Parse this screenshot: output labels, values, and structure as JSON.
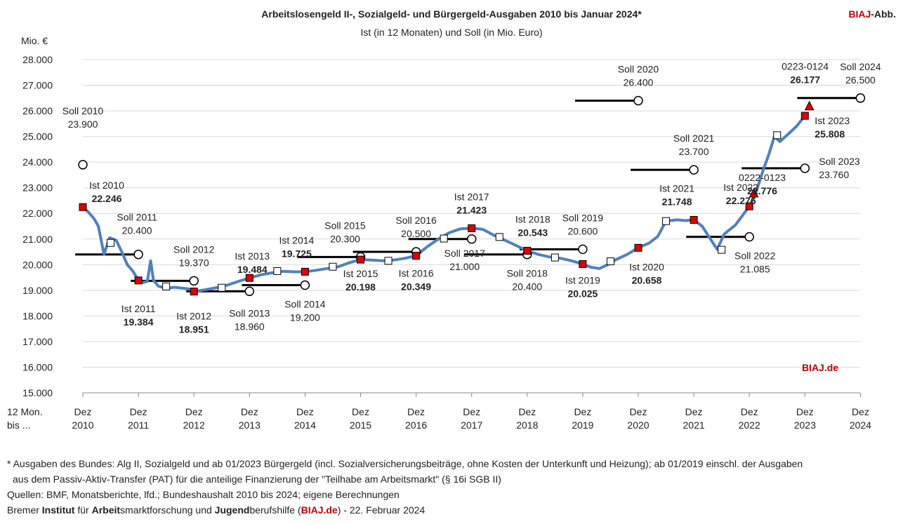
{
  "header": {
    "title": "Arbeitslosengeld II-, Sozialgeld- und Bürgergeld-Ausgaben 2010 bis Januar 2024*",
    "subtitle": "Ist (in 12 Monaten) und Soll (in Mio. Euro)",
    "badge_red": "BIAJ",
    "badge_rest": "-Abb."
  },
  "chart_data": {
    "type": "line",
    "ylabel": "Mio. €",
    "ylim": [
      15000,
      28000
    ],
    "yticks": [
      "15.000",
      "16.000",
      "17.000",
      "18.000",
      "19.000",
      "20.000",
      "21.000",
      "22.000",
      "23.000",
      "24.000",
      "25.000",
      "26.000",
      "27.000",
      "28.000"
    ],
    "x_prefix": [
      "12 Mon.",
      "bis ..."
    ],
    "x_ticks": [
      {
        "line1": "Dez",
        "line2": "2010"
      },
      {
        "line1": "Dez",
        "line2": "2011"
      },
      {
        "line1": "Dez",
        "line2": "2012"
      },
      {
        "line1": "Dez",
        "line2": "2013"
      },
      {
        "line1": "Dez",
        "line2": "2014"
      },
      {
        "line1": "Dez",
        "line2": "2015"
      },
      {
        "line1": "Dez",
        "line2": "2016"
      },
      {
        "line1": "Dez",
        "line2": "2017"
      },
      {
        "line1": "Dez",
        "line2": "2018"
      },
      {
        "line1": "Dez",
        "line2": "2019"
      },
      {
        "line1": "Dez",
        "line2": "2020"
      },
      {
        "line1": "Dez",
        "line2": "2021"
      },
      {
        "line1": "Dez",
        "line2": "2022"
      },
      {
        "line1": "Dez",
        "line2": "2023"
      },
      {
        "line1": "Dez",
        "line2": "2024"
      }
    ],
    "watermark": "BIAJ.de",
    "curve": [
      [
        2010.0,
        22246
      ],
      [
        2010.1,
        22050
      ],
      [
        2010.2,
        21800
      ],
      [
        2010.28,
        21500
      ],
      [
        2010.38,
        20400
      ],
      [
        2010.48,
        21050
      ],
      [
        2010.6,
        20950
      ],
      [
        2010.7,
        20500
      ],
      [
        2010.8,
        20000
      ],
      [
        2010.9,
        19750
      ],
      [
        2011.0,
        19384
      ],
      [
        2011.08,
        19300
      ],
      [
        2011.16,
        19350
      ],
      [
        2011.22,
        20150
      ],
      [
        2011.27,
        19400
      ],
      [
        2011.36,
        19160
      ],
      [
        2011.5,
        19080
      ],
      [
        2011.65,
        19120
      ],
      [
        2011.8,
        19080
      ],
      [
        2011.9,
        19060
      ],
      [
        2012.0,
        18951
      ],
      [
        2012.2,
        19020
      ],
      [
        2012.4,
        19100
      ],
      [
        2012.6,
        19200
      ],
      [
        2012.8,
        19350
      ],
      [
        2013.0,
        19484
      ],
      [
        2013.2,
        19600
      ],
      [
        2013.4,
        19680
      ],
      [
        2013.6,
        19740
      ],
      [
        2013.8,
        19720
      ],
      [
        2014.0,
        19725
      ],
      [
        2014.2,
        19780
      ],
      [
        2014.4,
        19850
      ],
      [
        2014.6,
        19920
      ],
      [
        2014.8,
        20080
      ],
      [
        2015.0,
        20198
      ],
      [
        2015.2,
        20180
      ],
      [
        2015.4,
        20150
      ],
      [
        2015.6,
        20180
      ],
      [
        2015.8,
        20250
      ],
      [
        2016.0,
        20349
      ],
      [
        2016.2,
        20700
      ],
      [
        2016.4,
        21000
      ],
      [
        2016.6,
        21250
      ],
      [
        2016.8,
        21400
      ],
      [
        2017.0,
        21423
      ],
      [
        2017.2,
        21380
      ],
      [
        2017.4,
        21150
      ],
      [
        2017.6,
        20950
      ],
      [
        2017.8,
        20750
      ],
      [
        2018.0,
        20543
      ],
      [
        2018.2,
        20400
      ],
      [
        2018.4,
        20300
      ],
      [
        2018.6,
        20250
      ],
      [
        2018.8,
        20150
      ],
      [
        2019.0,
        20025
      ],
      [
        2019.15,
        19900
      ],
      [
        2019.3,
        19850
      ],
      [
        2019.45,
        20000
      ],
      [
        2019.6,
        20200
      ],
      [
        2019.8,
        20400
      ],
      [
        2020.0,
        20658
      ],
      [
        2020.2,
        20850
      ],
      [
        2020.35,
        21100
      ],
      [
        2020.5,
        21700
      ],
      [
        2020.7,
        21750
      ],
      [
        2020.85,
        21720
      ],
      [
        2021.0,
        21748
      ],
      [
        2021.15,
        21500
      ],
      [
        2021.3,
        21000
      ],
      [
        2021.42,
        20600
      ],
      [
        2021.55,
        21200
      ],
      [
        2021.75,
        21550
      ],
      [
        2022.0,
        22276
      ],
      [
        2022.1,
        22700
      ],
      [
        2022.25,
        23700
      ],
      [
        2022.35,
        24300
      ],
      [
        2022.45,
        25000
      ],
      [
        2022.55,
        24800
      ],
      [
        2022.7,
        25100
      ],
      [
        2022.85,
        25400
      ],
      [
        2023.0,
        25808
      ]
    ],
    "quarter_markers": [
      [
        2010.5,
        20850
      ],
      [
        2011.5,
        19150
      ],
      [
        2012.5,
        19100
      ],
      [
        2013.5,
        19750
      ],
      [
        2014.5,
        19920
      ],
      [
        2015.5,
        20150
      ],
      [
        2016.5,
        21020
      ],
      [
        2017.5,
        21080
      ],
      [
        2018.5,
        20280
      ],
      [
        2019.5,
        20130
      ],
      [
        2020.5,
        21700
      ],
      [
        2021.5,
        20580
      ],
      [
        2022.5,
        25050
      ]
    ],
    "ist_points": [
      {
        "x": 2010,
        "y": 22246,
        "label": "Ist 2010",
        "value": "22.246"
      },
      {
        "x": 2011,
        "y": 19384,
        "label": "Ist 2011",
        "value": "19.384"
      },
      {
        "x": 2012,
        "y": 18951,
        "label": "Ist 2012",
        "value": "18.951"
      },
      {
        "x": 2013,
        "y": 19484,
        "label": "Ist 2013",
        "value": "19.484"
      },
      {
        "x": 2014,
        "y": 19725,
        "label": "Ist 2014",
        "value": "19.725"
      },
      {
        "x": 2015,
        "y": 20198,
        "label": "Ist 2015",
        "value": "20.198"
      },
      {
        "x": 2016,
        "y": 20349,
        "label": "Ist 2016",
        "value": "20.349"
      },
      {
        "x": 2017,
        "y": 21423,
        "label": "Ist 2017",
        "value": "21.423"
      },
      {
        "x": 2018,
        "y": 20543,
        "label": "Ist 2018",
        "value": "20.543"
      },
      {
        "x": 2019,
        "y": 20025,
        "label": "Ist 2019",
        "value": "20.025"
      },
      {
        "x": 2020,
        "y": 20658,
        "label": "Ist 2020",
        "value": "20.658"
      },
      {
        "x": 2021,
        "y": 21748,
        "label": "Ist 2021",
        "value": "21.748"
      },
      {
        "x": 2022,
        "y": 22276,
        "label": "Ist 2022",
        "value": "22.276"
      },
      {
        "x": 2023,
        "y": 25808,
        "label": "Ist 2023",
        "value": "25.808"
      }
    ],
    "period_points": [
      {
        "x": 2022.08,
        "y": 22776,
        "label": "0222-0123",
        "value": "22.776"
      },
      {
        "x": 2023.08,
        "y": 26177,
        "label": "0223-0124",
        "value": "26.177"
      }
    ],
    "soll_points": [
      {
        "x": 2010,
        "y": 23900,
        "label": "Soll 2010",
        "value": "23.900"
      },
      {
        "x": 2011,
        "y": 20400,
        "label": "Soll 2011",
        "value": "20.400"
      },
      {
        "x": 2012,
        "y": 19370,
        "label": "Soll 2012",
        "value": "19.370"
      },
      {
        "x": 2013,
        "y": 18960,
        "label": "Soll 2013",
        "value": "18.960"
      },
      {
        "x": 2014,
        "y": 19200,
        "label": "Soll 2014",
        "value": "19.200"
      },
      {
        "x": 2015,
        "y": 20300,
        "label": "Soll 2015",
        "value": "20.300"
      },
      {
        "x": 2016,
        "y": 20500,
        "label": "Soll 2016",
        "value": "20.500"
      },
      {
        "x": 2017,
        "y": 21000,
        "label": "Soll 2017",
        "value": "21.000"
      },
      {
        "x": 2018,
        "y": 20400,
        "label": "Soll 2018",
        "value": "20.400"
      },
      {
        "x": 2019,
        "y": 20600,
        "label": "Soll 2019",
        "value": "20.600"
      },
      {
        "x": 2020,
        "y": 26400,
        "label": "Soll 2020",
        "value": "26.400"
      },
      {
        "x": 2021,
        "y": 23700,
        "label": "Soll 2021",
        "value": "23.700"
      },
      {
        "x": 2022,
        "y": 21085,
        "label": "Soll 2022",
        "value": "21.085"
      },
      {
        "x": 2023,
        "y": 23760,
        "label": "Soll 2023",
        "value": "23.760"
      },
      {
        "x": 2024,
        "y": 26500,
        "label": "Soll 2024",
        "value": "26.500"
      }
    ],
    "colors": {
      "line": "#4f81bd",
      "ist": "#e00000",
      "soll_line": "#000000",
      "grid": "#d9d9d9"
    }
  },
  "footer": {
    "note_line1": "* Ausgaben des Bundes: Alg II, Sozialgeld und ab 01/2023 Bürgergeld (incl. Sozialversicherungsbeiträge, ohne Kosten der Unterkunft und Heizung); ab 01/2019 einschl. der Ausgaben",
    "note_line2": "aus dem Passiv-Aktiv-Transfer (PAT) für die anteilige Finanzierung der \"Teilhabe am Arbeitsmarkt\" (§ 16i SGB II)",
    "sources": "Quellen: BMF, Monatsberichte, lfd.; Bundeshaushalt 2010 bis 2024; eigene Berechnungen",
    "credit_parts": [
      {
        "text": "Bremer ",
        "bold": false,
        "red": false
      },
      {
        "text": "Institut",
        "bold": true,
        "red": false
      },
      {
        "text": " für ",
        "bold": false,
        "red": false
      },
      {
        "text": "Arbeit",
        "bold": true,
        "red": false
      },
      {
        "text": "smarktforschung und ",
        "bold": false,
        "red": false
      },
      {
        "text": "Jugend",
        "bold": true,
        "red": false
      },
      {
        "text": "berufshilfe (",
        "bold": false,
        "red": false
      },
      {
        "text": "BIAJ.de",
        "bold": true,
        "red": true
      },
      {
        "text": ") - 22. Februar 2024",
        "bold": false,
        "red": false
      }
    ]
  }
}
